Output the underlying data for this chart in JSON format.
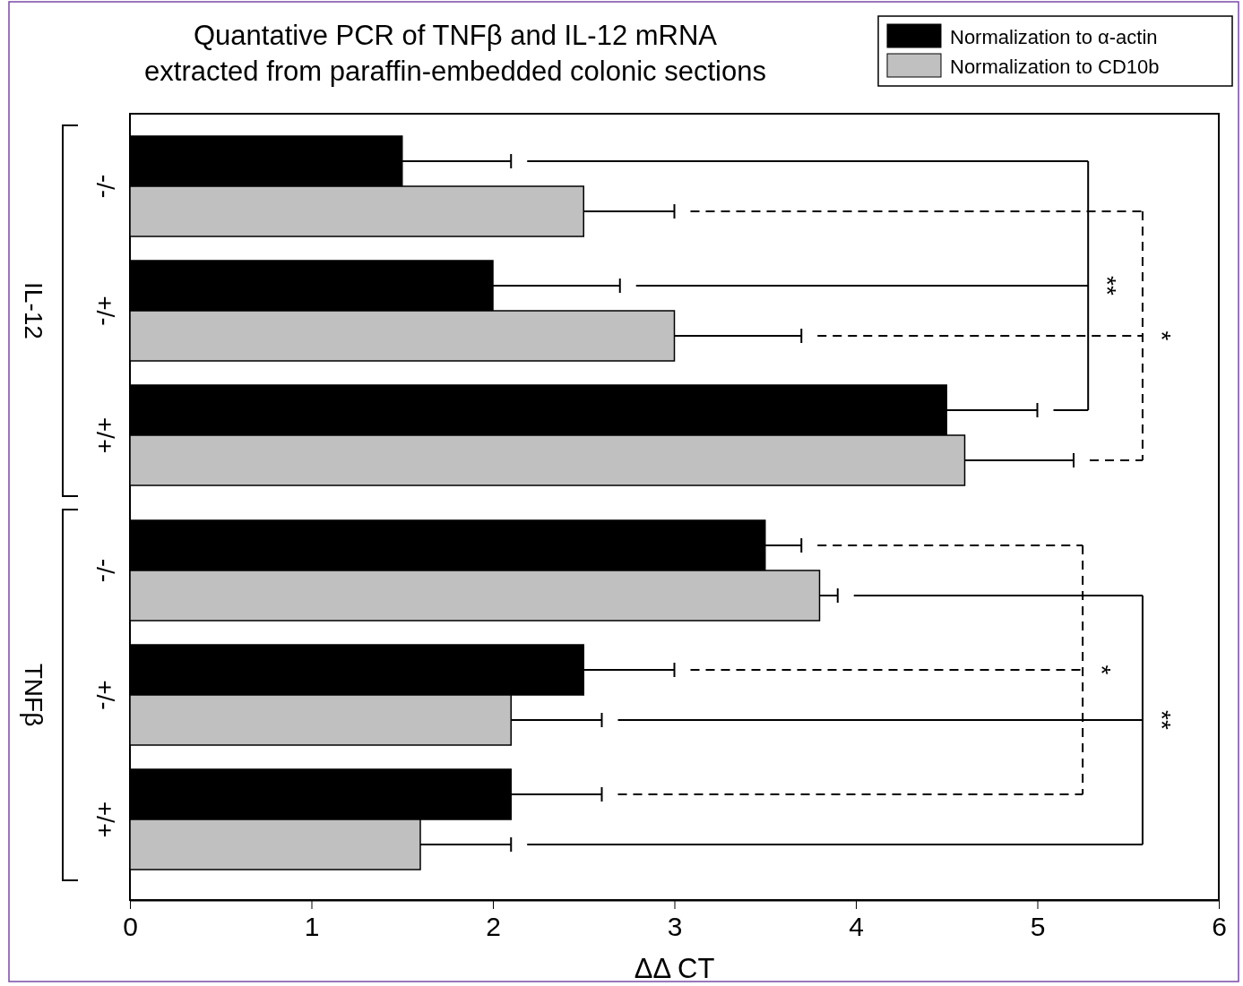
{
  "chart_data": {
    "type": "bar",
    "orientation": "horizontal",
    "title": "Quantative PCR of TNFβ and IL-12 mRNA\nextracted from paraffin-embedded colonic sections",
    "xlabel": "ΔΔ CT",
    "categories": [
      "-/-",
      "+/-",
      "+/+",
      "-/-",
      "+/-",
      "+/+"
    ],
    "series": [
      {
        "name": "Normalization to α-actin",
        "color": "#000000",
        "values": [
          1.5,
          2.0,
          4.5,
          3.5,
          2.5,
          2.1
        ],
        "errors": [
          [
            1.5,
            2.1
          ],
          [
            2.0,
            2.7
          ],
          [
            4.5,
            5.0
          ],
          [
            3.5,
            3.7
          ],
          [
            2.5,
            3.0
          ],
          [
            2.1,
            2.6
          ]
        ]
      },
      {
        "name": "Normalization to CD10b",
        "color": "#c0c0c0",
        "values": [
          2.5,
          3.0,
          4.6,
          3.8,
          2.1,
          1.6
        ],
        "errors": [
          [
            2.5,
            3.0
          ],
          [
            3.0,
            3.7
          ],
          [
            4.6,
            5.2
          ],
          [
            3.8,
            3.9
          ],
          [
            2.1,
            2.6
          ],
          [
            1.6,
            2.1
          ]
        ]
      }
    ],
    "xlim": [
      0,
      6
    ],
    "xticks": [
      0,
      1,
      2,
      3,
      4,
      5,
      6
    ],
    "legend": "top right",
    "annotations": [
      "IL-12",
      "TNFβ",
      "**",
      "*",
      "*",
      "**"
    ]
  }
}
